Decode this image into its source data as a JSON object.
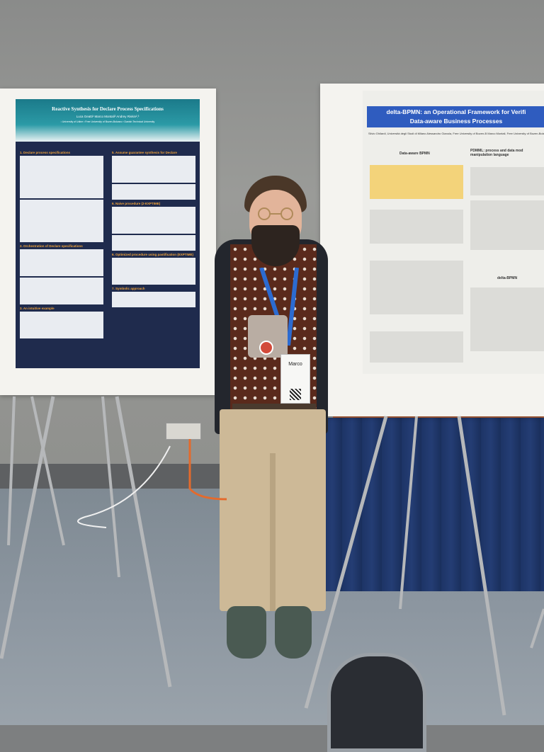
{
  "scene": {
    "description_colors": {
      "wall": "#8a8b8a",
      "floor": "#8c96a0",
      "table_skirt": "#1d3466",
      "poster_left_header": "#1b7a8a",
      "poster_right_header": "#2f5cbf"
    }
  },
  "poster_left": {
    "title": "Reactive Synthesis for Declare Process Specifications",
    "authors": "Luca Geatti¹   Marco Montali²   Andrey Rivkin²,³",
    "affiliations": "¹ University of Udine   ² Free University of Bozen-Bolzano   ³ Danish Technical University",
    "sections": [
      "1. Declare process specifications",
      "2. Orchestration of Declare specifications",
      "3. An intuitive example",
      "5. Assume guarantee synthesis for Declare",
      "6. Naive procedure (2-EXPTIME)",
      "6. Optimized procedure using pastification (EXPTIME)",
      "7. Symbolic approach"
    ]
  },
  "poster_right": {
    "title": "delta-BPMN: an Operational Framework for Verifi... Data-aware Business Processes",
    "title_line1": "delta-BPMN: an Operational Framework for Verifi",
    "title_line2": "Data-aware Business Processes",
    "authors": "Silvio Ghilardi, Università degli Studi di Milano   Alessandro Gianola, Free University of Bozen-B   Marco Montali, Free University of Bozen-Bolzano   Andrey Rivkin, Danish Technical Univ",
    "sections": [
      "Data-aware BPMN",
      "PDMML: process and data mod manipulation language",
      "delta-BPMN"
    ]
  },
  "badge": {
    "name": "Marco"
  }
}
